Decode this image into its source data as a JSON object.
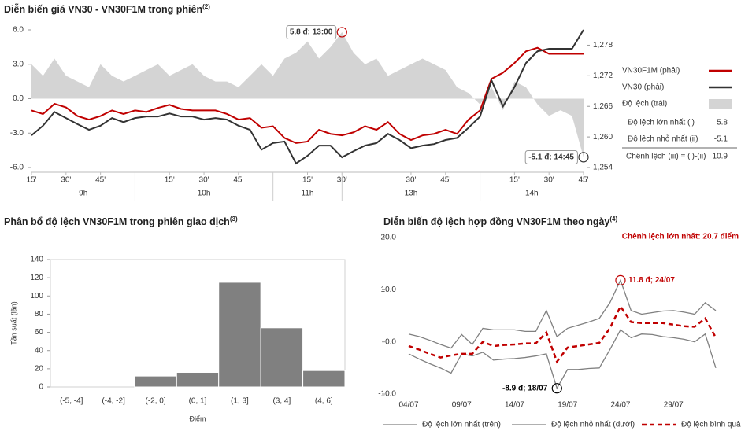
{
  "chart_data": [
    {
      "type": "line",
      "title": "Diễn biến giá VN30 - VN30F1M trong phiên",
      "title_note": "(2)",
      "x": [
        0,
        5,
        10,
        15,
        20,
        25,
        30,
        35,
        40,
        45,
        50,
        55,
        60,
        65,
        70,
        75,
        80,
        85,
        90,
        95,
        100,
        105,
        110,
        115,
        120,
        125,
        130,
        135,
        140,
        145,
        150,
        155,
        160,
        165,
        170,
        175,
        180,
        185,
        190,
        195,
        200,
        205,
        210,
        215,
        220,
        225,
        230,
        235,
        240
      ],
      "xlim": [
        0,
        240
      ],
      "xticks": [
        {
          "value": 0,
          "label": "15'"
        },
        {
          "value": 15,
          "label": "30'"
        },
        {
          "value": 30,
          "label": "45'"
        },
        {
          "value": 60,
          "label": "15'"
        },
        {
          "value": 75,
          "label": "30'"
        },
        {
          "value": 90,
          "label": "45'"
        },
        {
          "value": 120,
          "label": "15'"
        },
        {
          "value": 135,
          "label": "30'"
        },
        {
          "value": 165,
          "label": "30'"
        },
        {
          "value": 180,
          "label": "45'"
        },
        {
          "value": 210,
          "label": "15'"
        },
        {
          "value": 225,
          "label": "30'"
        },
        {
          "value": 240,
          "label": "45'"
        }
      ],
      "x_groups": [
        {
          "label": "9h",
          "from": 0,
          "to": 45
        },
        {
          "label": "10h",
          "from": 45,
          "to": 105
        },
        {
          "label": "11h",
          "from": 105,
          "to": 135
        },
        {
          "label": "13h",
          "from": 135,
          "to": 195
        },
        {
          "label": "14h",
          "from": 195,
          "to": 240
        }
      ],
      "ylim": [
        -6,
        6
      ],
      "yticks": [
        {
          "value": 6,
          "label": "6.0"
        },
        {
          "value": 3,
          "label": "3.0"
        },
        {
          "value": 0,
          "label": "0.0"
        },
        {
          "value": -3,
          "label": "-3.0"
        },
        {
          "value": -6,
          "label": "-6.0"
        }
      ],
      "y2lim": [
        1254,
        1281
      ],
      "y2ticks": [
        {
          "value": 1278,
          "label": "1,278"
        },
        {
          "value": 1272,
          "label": "1,272"
        },
        {
          "value": 1266,
          "label": "1,266"
        },
        {
          "value": 1260,
          "label": "1,260"
        },
        {
          "value": 1254,
          "label": "1,254"
        }
      ],
      "series": [
        {
          "name": "VN30F1M (phải)",
          "color": "#c00000",
          "axis": "y2",
          "values": [
            1265.2,
            1264.5,
            1266.5,
            1265.8,
            1264.1,
            1263.4,
            1264.1,
            1265.2,
            1264.5,
            1265.2,
            1264.9,
            1265.7,
            1266.3,
            1265.5,
            1265.2,
            1265.2,
            1265.2,
            1264.5,
            1263.4,
            1263.7,
            1261.8,
            1262.1,
            1259.8,
            1258.8,
            1259.1,
            1261.4,
            1260.6,
            1260.3,
            1260.9,
            1262.1,
            1261.4,
            1262.9,
            1260.6,
            1259.4,
            1260.3,
            1260.6,
            1261.4,
            1260.6,
            1263.4,
            1265.2,
            1271.4,
            1272.6,
            1274.5,
            1276.8,
            1277.5,
            1276.3,
            1276.3,
            1276.3,
            1276.3
          ]
        },
        {
          "name": "VN30 (phải)",
          "color": "#333333",
          "axis": "y2",
          "values": [
            1260.3,
            1262.2,
            1264.9,
            1263.7,
            1262.5,
            1261.4,
            1262.2,
            1263.7,
            1262.9,
            1263.7,
            1264.0,
            1264.0,
            1264.6,
            1264.0,
            1264.0,
            1263.4,
            1263.7,
            1263.4,
            1262.2,
            1261.4,
            1257.5,
            1258.8,
            1259.1,
            1254.8,
            1256.3,
            1258.3,
            1258.3,
            1256.0,
            1257.2,
            1258.3,
            1258.8,
            1260.6,
            1259.4,
            1257.8,
            1258.3,
            1258.6,
            1259.4,
            1259.8,
            1261.8,
            1264.0,
            1271.1,
            1266.0,
            1269.8,
            1274.5,
            1276.8,
            1277.3,
            1277.3,
            1277.3,
            1281
          ]
        },
        {
          "name": "Độ lệch (trái)",
          "color": "#d4d4d4",
          "kind": "area",
          "values": [
            3.0,
            2.0,
            3.5,
            2.0,
            1.5,
            1.0,
            3.0,
            2.0,
            1.5,
            2.0,
            2.5,
            3.0,
            2.0,
            2.5,
            3.0,
            2.0,
            1.5,
            1.5,
            1.0,
            2.0,
            3.0,
            2.0,
            3.5,
            4.0,
            5.0,
            3.5,
            4.5,
            5.8,
            4.0,
            3.0,
            3.5,
            2.0,
            2.5,
            3.0,
            3.5,
            3.0,
            2.5,
            1.0,
            0.5,
            -0.5,
            1.0,
            -1.0,
            1.5,
            1.0,
            -0.5,
            -1.5,
            -1.0,
            -1.5,
            -5.1
          ]
        }
      ],
      "annotations": [
        {
          "x": 135,
          "y": 5.8,
          "text": "5.8 đ; 13:00",
          "color": "#c00000"
        },
        {
          "x": 240,
          "y": -5.1,
          "text": "-5.1 đ; 14:45",
          "color": "#333333"
        }
      ],
      "stats": [
        {
          "label": "Độ lệch lớn nhất (i)",
          "value": 5.8
        },
        {
          "label": "Độ lệch nhỏ nhất (ii)",
          "value": -5.1
        },
        {
          "label": "Chênh lệch (iii) = (i)-(ii)",
          "value": 10.9
        }
      ]
    },
    {
      "type": "bar",
      "title": "Phân bổ độ lệch VN30F1M trong phiên giao dịch",
      "title_note": "(3)",
      "categories": [
        "(-5, -4]",
        "(-4, -2]",
        "(-2, 0]",
        "(0, 1]",
        "(1, 3]",
        "(3, 4]",
        "(4, 6]"
      ],
      "values": [
        0,
        0,
        12,
        16,
        115,
        65,
        18
      ],
      "color": "#808080",
      "ylim": [
        0,
        140
      ],
      "yticks": [
        0,
        20,
        40,
        60,
        80,
        100,
        120,
        140
      ],
      "y_label": "Tần suất (lần)",
      "x_label": "Điểm"
    },
    {
      "type": "line",
      "title": "Diễn biến độ lệch hợp đồng VN30F1M theo ngày",
      "title_note": "(4)",
      "subtitle": "Chênh lệch lớn nhất: 20.7 điểm",
      "categories": [
        "04/07",
        null,
        null,
        null,
        null,
        "09/07",
        null,
        null,
        null,
        null,
        "14/07",
        null,
        null,
        null,
        null,
        "19/07",
        null,
        null,
        null,
        null,
        "24/07",
        null,
        null,
        null,
        null,
        "29/07",
        null,
        null,
        null,
        null
      ],
      "ylim": [
        -10,
        20
      ],
      "yticks": [
        {
          "value": 20,
          "label": "20.0"
        },
        {
          "value": 10,
          "label": "10.0"
        },
        {
          "value": 0,
          "label": "0.0"
        },
        {
          "value": -10,
          "label": "-10.0"
        }
      ],
      "series": [
        {
          "name": "Độ lệch lớn nhất (trên)",
          "color": "#808080",
          "values": [
            1.5,
            1.0,
            0.3,
            -0.5,
            -1.2,
            1.4,
            -0.5,
            2.6,
            2.3,
            2.3,
            2.3,
            2.0,
            2.0,
            6.0,
            1.0,
            2.6,
            3.2,
            3.8,
            4.5,
            7.5,
            11.8,
            6.0,
            5.3,
            5.6,
            5.9,
            6.0,
            5.7,
            5.3,
            7.5,
            6.0
          ]
        },
        {
          "name": "Độ lệch nhỏ nhất (dưới)",
          "color": "#808080",
          "values": [
            -2.3,
            -3.3,
            -4.2,
            -5.0,
            -6.0,
            -2.3,
            -2.7,
            -2.0,
            -3.5,
            -3.3,
            -3.2,
            -3.0,
            -2.7,
            -2.3,
            -8.9,
            -5.3,
            -5.3,
            -5.1,
            -5.0,
            -1.5,
            2.3,
            0.8,
            1.5,
            1.4,
            1.0,
            0.8,
            0.5,
            0.0,
            1.5,
            -5.0
          ]
        },
        {
          "name": "Độ lệch bình quân",
          "color": "#c00000",
          "dashed": true,
          "values": [
            -0.8,
            -1.5,
            -2.3,
            -3.0,
            -2.6,
            -2.3,
            -2.3,
            0.0,
            -0.8,
            -0.6,
            -0.5,
            -0.3,
            -0.3,
            1.8,
            -3.8,
            -1.1,
            -0.8,
            -0.5,
            -0.2,
            2.6,
            6.8,
            3.8,
            3.6,
            3.6,
            3.6,
            3.3,
            3.0,
            2.9,
            4.5,
            0.8
          ]
        }
      ],
      "annotations": [
        {
          "x": 20,
          "y": 11.8,
          "text": "11.8 đ; 24/07",
          "color": "#c00000"
        },
        {
          "x": 14,
          "y": -8.9,
          "text": "-8.9 đ; 18/07",
          "color": "#000000"
        }
      ]
    }
  ]
}
